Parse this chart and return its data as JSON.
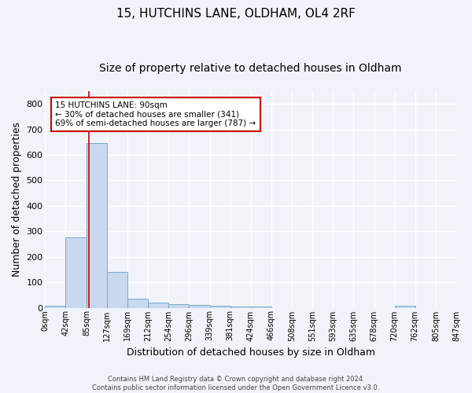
{
  "title_line1": "15, HUTCHINS LANE, OLDHAM, OL4 2RF",
  "title_line2": "Size of property relative to detached houses in Oldham",
  "xlabel": "Distribution of detached houses by size in Oldham",
  "ylabel": "Number of detached properties",
  "bin_labels": [
    "0sqm",
    "42sqm",
    "85sqm",
    "127sqm",
    "169sqm",
    "212sqm",
    "254sqm",
    "296sqm",
    "339sqm",
    "381sqm",
    "424sqm",
    "466sqm",
    "508sqm",
    "551sqm",
    "593sqm",
    "635sqm",
    "678sqm",
    "720sqm",
    "762sqm",
    "805sqm",
    "847sqm"
  ],
  "bin_edges": [
    0,
    42,
    85,
    127,
    169,
    212,
    254,
    296,
    339,
    381,
    424,
    466,
    508,
    551,
    593,
    635,
    678,
    720,
    762,
    805,
    847
  ],
  "bar_heights": [
    8,
    275,
    645,
    140,
    37,
    20,
    13,
    11,
    8,
    5,
    5,
    0,
    0,
    0,
    0,
    0,
    0,
    7,
    0,
    0,
    5
  ],
  "bar_color": "#c8d8ee",
  "bar_edge_color": "#7aaac8",
  "vline_x": 90,
  "vline_color": "#cc0000",
  "annotation_text_line1": "15 HUTCHINS LANE: 90sqm",
  "annotation_text_line2": "← 30% of detached houses are smaller (341)",
  "annotation_text_line3": "69% of semi-detached houses are larger (787) →",
  "annotation_box_color": "#ffffff",
  "annotation_box_edge": "#cc0000",
  "ylim": [
    0,
    850
  ],
  "yticks": [
    0,
    100,
    200,
    300,
    400,
    500,
    600,
    700,
    800
  ],
  "bg_color": "#f0f4fa",
  "plot_bg_color": "#f0f4fa",
  "footer_line1": "Contains HM Land Registry data © Crown copyright and database right 2024.",
  "footer_line2": "Contains public sector information licensed under the Open Government Licence v3.0.",
  "title_fontsize": 11,
  "subtitle_fontsize": 10,
  "footer_fontsize": 6,
  "tick_fontsize": 7,
  "axis_label_fontsize": 9
}
